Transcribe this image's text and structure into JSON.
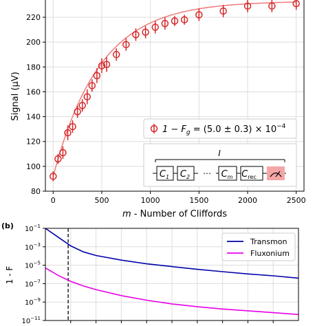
{
  "chart_data": [
    {
      "type": "scatter",
      "panel_label": "",
      "xlabel_var": "m",
      "xlabel_rest": " - Number of Cliffords",
      "ylabel": "Signal (μV)",
      "xlim": [
        -80,
        2580
      ],
      "ylim": [
        80,
        235
      ],
      "xticks": [
        0,
        500,
        1000,
        1500,
        2000,
        2500
      ],
      "yticks": [
        80,
        100,
        120,
        140,
        160,
        180,
        200,
        220
      ],
      "grid": true,
      "series": [
        {
          "name": "1 − F_g = (5.0 ± 0.3) × 10^−4",
          "legend_main": "1 − F",
          "legend_sub": "g",
          "legend_mid": " = (5.0 ± 0.3) × 10",
          "legend_sup": "−4",
          "points": [
            {
              "x": 0,
              "y": 92,
              "err": 4
            },
            {
              "x": 50,
              "y": 106,
              "err": 4
            },
            {
              "x": 100,
              "y": 111,
              "err": 5
            },
            {
              "x": 150,
              "y": 127,
              "err": 6
            },
            {
              "x": 200,
              "y": 132,
              "err": 5
            },
            {
              "x": 250,
              "y": 144,
              "err": 5
            },
            {
              "x": 300,
              "y": 149,
              "err": 5
            },
            {
              "x": 350,
              "y": 156,
              "err": 6
            },
            {
              "x": 400,
              "y": 165,
              "err": 5
            },
            {
              "x": 450,
              "y": 173,
              "err": 6
            },
            {
              "x": 500,
              "y": 181,
              "err": 6
            },
            {
              "x": 550,
              "y": 182,
              "err": 6
            },
            {
              "x": 650,
              "y": 190,
              "err": 5
            },
            {
              "x": 750,
              "y": 198,
              "err": 5
            },
            {
              "x": 850,
              "y": 206,
              "err": 5
            },
            {
              "x": 950,
              "y": 208,
              "err": 5
            },
            {
              "x": 1050,
              "y": 212,
              "err": 5
            },
            {
              "x": 1150,
              "y": 215,
              "err": 5
            },
            {
              "x": 1250,
              "y": 217,
              "err": 4
            },
            {
              "x": 1350,
              "y": 218,
              "err": 4
            },
            {
              "x": 1500,
              "y": 222,
              "err": 5
            },
            {
              "x": 1750,
              "y": 225,
              "err": 5
            },
            {
              "x": 2000,
              "y": 229,
              "err": 5
            },
            {
              "x": 2250,
              "y": 229,
              "err": 5
            },
            {
              "x": 2500,
              "y": 231,
              "err": 5
            }
          ],
          "fit": {
            "A": 148,
            "B": 84,
            "tau": 480
          }
        }
      ],
      "circuit": {
        "label": "I",
        "gates": [
          {
            "main": "C",
            "sub": "1"
          },
          {
            "main": "C",
            "sub": "2"
          },
          {
            "main": "⋯",
            "sub": ""
          },
          {
            "main": "C",
            "sub": "m"
          },
          {
            "main": "C",
            "sub": "rec"
          }
        ]
      },
      "colors": {
        "marker": "#d62728",
        "fit": "#f08080",
        "measure": "#f4a6a6"
      }
    },
    {
      "type": "line",
      "panel_label": "(b)",
      "ylabel": "1 - F",
      "yscale": "log",
      "ylim_exp": [
        -11,
        -1
      ],
      "ytick_exps": [
        -1,
        -3,
        -5,
        -7,
        -9,
        -11
      ],
      "xlim": [
        0,
        10
      ],
      "grid": true,
      "vline_x": 0.9,
      "series": [
        {
          "name": "Transmon",
          "color": "#0000aa",
          "x": [
            0,
            0.5,
            1,
            1.5,
            2,
            3,
            4,
            5,
            6,
            7,
            8,
            9,
            10
          ],
          "log10_y": [
            -1.0,
            -1.95,
            -2.9,
            -3.55,
            -3.95,
            -4.45,
            -4.85,
            -5.15,
            -5.45,
            -5.7,
            -5.95,
            -6.15,
            -6.4
          ]
        },
        {
          "name": "Fluxonium",
          "color": "#e600e6",
          "x": [
            0,
            0.5,
            1,
            1.5,
            2,
            3,
            4,
            5,
            6,
            7,
            8,
            9,
            10
          ],
          "log10_y": [
            -5.3,
            -6.1,
            -6.75,
            -7.25,
            -7.65,
            -8.3,
            -8.8,
            -9.2,
            -9.5,
            -9.75,
            -9.95,
            -10.15,
            -10.35
          ]
        }
      ]
    }
  ]
}
